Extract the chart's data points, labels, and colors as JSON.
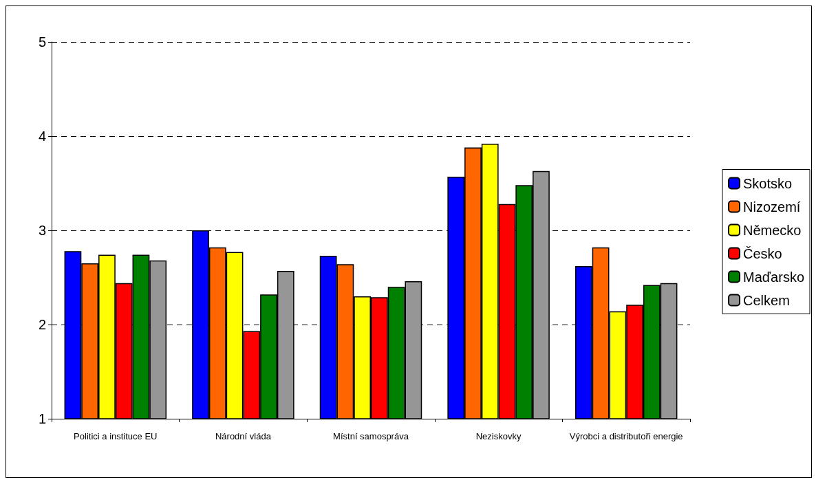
{
  "chart_data": {
    "type": "bar",
    "categories": [
      "Politici a instituce EU",
      "Národní vláda",
      "Místní samospráva",
      "Neziskovky",
      "Výrobci a distributoři energie"
    ],
    "series": [
      {
        "name": "Skotsko",
        "color": "#0000ff",
        "values": [
          2.78,
          3.0,
          2.73,
          3.57,
          2.62
        ]
      },
      {
        "name": "Nizozemí",
        "color": "#ff6600",
        "values": [
          2.65,
          2.82,
          2.64,
          3.88,
          2.82
        ]
      },
      {
        "name": "Německo",
        "color": "#ffff00",
        "values": [
          2.74,
          2.77,
          2.3,
          3.92,
          2.14
        ]
      },
      {
        "name": "Česko",
        "color": "#ff0000",
        "values": [
          2.44,
          1.93,
          2.29,
          3.28,
          2.21
        ]
      },
      {
        "name": "Maďarsko",
        "color": "#008000",
        "values": [
          2.74,
          2.32,
          2.4,
          3.48,
          2.42
        ]
      },
      {
        "name": "Celkem",
        "color": "#969696",
        "values": [
          2.68,
          2.57,
          2.46,
          3.63,
          2.44
        ]
      }
    ],
    "ylim": [
      1,
      5
    ],
    "yticks": [
      1,
      2,
      3,
      4,
      5
    ],
    "grid": "y",
    "legend": "right"
  }
}
